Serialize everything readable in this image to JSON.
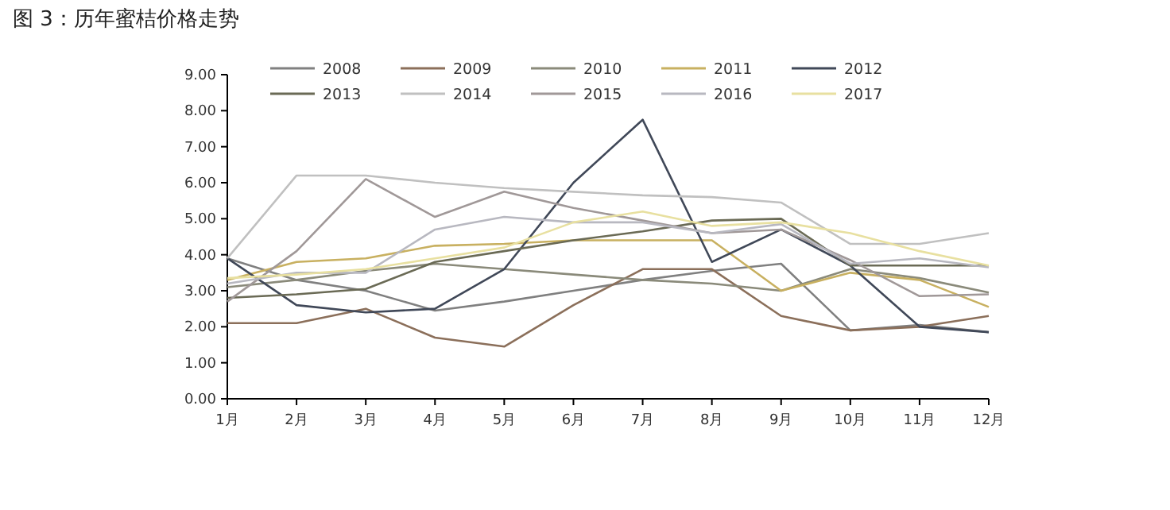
{
  "chart_data": {
    "type": "line",
    "title": "图 3：历年蜜桔价格走势",
    "categories": [
      "1月",
      "2月",
      "3月",
      "4月",
      "5月",
      "6月",
      "7月",
      "8月",
      "9月",
      "10月",
      "11月",
      "12月"
    ],
    "ylim": [
      0,
      9
    ],
    "yticks": [
      {
        "value": 0,
        "label": "0.00"
      },
      {
        "value": 1,
        "label": "1.00"
      },
      {
        "value": 2,
        "label": "2.00"
      },
      {
        "value": 3,
        "label": "3.00"
      },
      {
        "value": 4,
        "label": "4.00"
      },
      {
        "value": 5,
        "label": "5.00"
      },
      {
        "value": 6,
        "label": "6.00"
      },
      {
        "value": 7,
        "label": "7.00"
      },
      {
        "value": 8,
        "label": "8.00"
      },
      {
        "value": 9,
        "label": "9.00"
      }
    ],
    "grid": false,
    "legend": "top",
    "marker": "none",
    "line_style": "solid",
    "series": [
      {
        "name": "2008",
        "color": "#808080",
        "values": [
          3.9,
          3.3,
          3.0,
          2.45,
          2.7,
          3.0,
          3.3,
          3.55,
          3.75,
          1.9,
          2.05,
          1.85
        ]
      },
      {
        "name": "2009",
        "color": "#8b6f5a",
        "values": [
          2.1,
          2.1,
          2.5,
          1.7,
          1.45,
          2.6,
          3.6,
          3.6,
          2.3,
          1.9,
          2.0,
          2.3
        ]
      },
      {
        "name": "2010",
        "color": "#8a8a7a",
        "values": [
          3.1,
          3.3,
          3.55,
          3.75,
          3.6,
          3.45,
          3.3,
          3.2,
          3.0,
          3.6,
          3.35,
          2.95
        ]
      },
      {
        "name": "2011",
        "color": "#c8b060",
        "values": [
          3.3,
          3.8,
          3.9,
          4.25,
          4.3,
          4.4,
          4.4,
          4.4,
          3.0,
          3.5,
          3.3,
          2.55
        ]
      },
      {
        "name": "2012",
        "color": "#404858",
        "values": [
          3.9,
          2.6,
          2.4,
          2.5,
          3.6,
          6.0,
          7.75,
          3.8,
          4.7,
          3.7,
          2.0,
          1.85
        ]
      },
      {
        "name": "2013",
        "color": "#6a6a55",
        "values": [
          2.8,
          2.9,
          3.05,
          3.8,
          4.1,
          4.4,
          4.65,
          4.95,
          5.0,
          3.7,
          3.7,
          3.7
        ]
      },
      {
        "name": "2014",
        "color": "#c0c0c0",
        "values": [
          3.9,
          6.2,
          6.2,
          6.0,
          5.85,
          5.75,
          5.65,
          5.6,
          5.45,
          4.3,
          4.3,
          4.6
        ]
      },
      {
        "name": "2015",
        "color": "#a09898",
        "values": [
          2.7,
          4.1,
          6.1,
          5.05,
          5.75,
          5.3,
          4.95,
          4.6,
          4.7,
          3.85,
          2.85,
          2.9
        ]
      },
      {
        "name": "2016",
        "color": "#b8b8c0",
        "values": [
          3.2,
          3.5,
          3.5,
          4.7,
          5.05,
          4.9,
          4.9,
          4.6,
          4.85,
          3.75,
          3.9,
          3.65
        ]
      },
      {
        "name": "2017",
        "color": "#e8e0a0",
        "values": [
          3.35,
          3.45,
          3.6,
          3.9,
          4.2,
          4.9,
          5.2,
          4.8,
          4.9,
          4.6,
          4.1,
          3.7
        ]
      }
    ]
  }
}
